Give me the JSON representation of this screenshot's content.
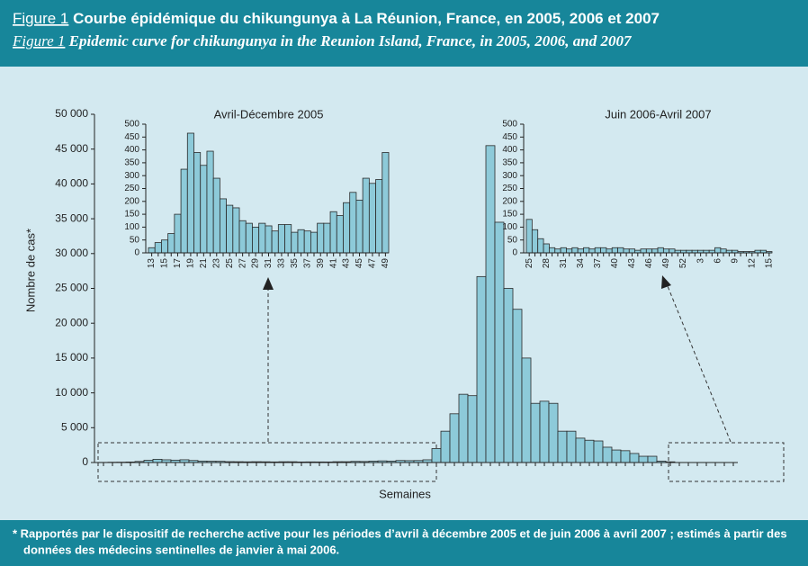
{
  "figure": {
    "label_fr": "Figure 1",
    "title_fr": "Courbe épidémique du chikungunya à La Réunion, France, en 2005, 2006 et 2007",
    "label_en": "Figure 1",
    "title_en": "Epidemic curve for chikungunya in the Reunion Island, France, in 2005, 2006, and 2007",
    "footnote": [
      "* Rapportés par le dispositif de recherche active pour les périodes d’avril à décembre 2005 et de juin 2006 à avril 2007 ; estimés à partir des",
      "données des médecins sentinelles de janvier à mai 2006."
    ]
  },
  "chart_data": [
    {
      "type": "bar",
      "ylabel": "Nombre de cas*",
      "xlabel": "Semaines",
      "color": "#8dcad9",
      "categories": [
        null,
        null,
        null,
        null,
        null,
        null,
        null,
        null,
        null,
        null,
        null,
        null,
        null,
        null,
        null,
        null,
        null,
        null,
        null,
        null,
        null,
        null,
        null,
        null,
        null,
        null,
        null,
        null,
        null,
        null,
        null,
        null,
        null,
        null,
        null,
        null,
        null,
        null,
        null,
        null,
        null,
        null,
        null,
        null,
        null,
        null,
        null,
        null,
        null,
        null,
        null,
        null,
        null,
        null,
        null,
        null,
        null,
        null,
        null,
        null,
        null,
        null,
        null,
        null,
        null,
        null,
        null,
        null,
        null,
        null,
        null
      ],
      "values": [
        20,
        40,
        50,
        75,
        150,
        325,
        465,
        390,
        340,
        395,
        290,
        210,
        185,
        175,
        125,
        115,
        100,
        115,
        105,
        85,
        110,
        110,
        80,
        90,
        85,
        80,
        115,
        115,
        160,
        145,
        195,
        235,
        205,
        290,
        270,
        285,
        390,
        2000,
        4500,
        7000,
        9800,
        9600,
        26700,
        45500,
        34500,
        25000,
        22000,
        15000,
        8500,
        8800,
        8500,
        4500,
        4500,
        3500,
        3200,
        3100,
        2200,
        1800,
        1700,
        1300,
        900,
        900,
        200,
        100,
        0,
        0,
        0,
        0,
        0,
        0,
        0
      ],
      "ylim": [
        0,
        50000
      ],
      "yticks": [
        0,
        {
          "value": 5000,
          "label": "5 000"
        },
        {
          "value": 10000,
          "label": "10 000"
        },
        {
          "value": 15000,
          "label": "15 000"
        },
        {
          "value": 20000,
          "label": "20 000"
        },
        {
          "value": 25000,
          "label": "25 000"
        },
        {
          "value": 30000,
          "label": "30 000"
        },
        {
          "value": 35000,
          "label": "35 000"
        },
        {
          "value": 40000,
          "label": "40 000"
        },
        {
          "value": 45000,
          "label": "45 000"
        },
        {
          "value": 50000,
          "label": "50 000"
        }
      ]
    },
    {
      "type": "bar",
      "title": "Avril-Décembre 2005",
      "color": "#8dcad9",
      "categories": [
        "13",
        null,
        "15",
        null,
        "17",
        null,
        "19",
        null,
        "21",
        null,
        "23",
        null,
        "25",
        null,
        "27",
        null,
        "29",
        null,
        "31",
        null,
        "33",
        null,
        "35",
        null,
        "37",
        null,
        "39",
        null,
        "41",
        null,
        "43",
        null,
        "45",
        null,
        "47",
        null,
        "49"
      ],
      "values": [
        20,
        40,
        50,
        75,
        150,
        325,
        465,
        390,
        340,
        395,
        290,
        210,
        185,
        175,
        125,
        115,
        100,
        115,
        105,
        85,
        110,
        110,
        80,
        90,
        85,
        80,
        115,
        115,
        160,
        145,
        195,
        235,
        205,
        290,
        270,
        285,
        390
      ],
      "ylim": [
        0,
        500
      ],
      "yticks": [
        0,
        50,
        100,
        150,
        200,
        250,
        300,
        350,
        400,
        450,
        500
      ]
    },
    {
      "type": "bar",
      "title": "Juin 2006-Avril 2007",
      "color": "#8dcad9",
      "categories": [
        "25",
        null,
        null,
        "28",
        null,
        null,
        "31",
        null,
        null,
        "34",
        null,
        null,
        "37",
        null,
        null,
        "40",
        null,
        null,
        "43",
        null,
        null,
        "46",
        null,
        null,
        "49",
        null,
        null,
        "52",
        null,
        null,
        "3",
        null,
        null,
        "6",
        null,
        null,
        "9",
        null,
        null,
        "12",
        null,
        null,
        "15"
      ],
      "values": [
        130,
        90,
        55,
        35,
        20,
        15,
        20,
        15,
        20,
        15,
        20,
        15,
        20,
        20,
        15,
        20,
        20,
        15,
        15,
        10,
        15,
        15,
        15,
        20,
        15,
        15,
        10,
        10,
        10,
        10,
        10,
        10,
        10,
        20,
        15,
        10,
        10,
        5,
        5,
        5,
        10,
        10,
        5
      ],
      "ylim": [
        0,
        500
      ],
      "yticks": [
        0,
        50,
        100,
        150,
        200,
        250,
        300,
        350,
        400,
        450,
        500
      ]
    }
  ]
}
